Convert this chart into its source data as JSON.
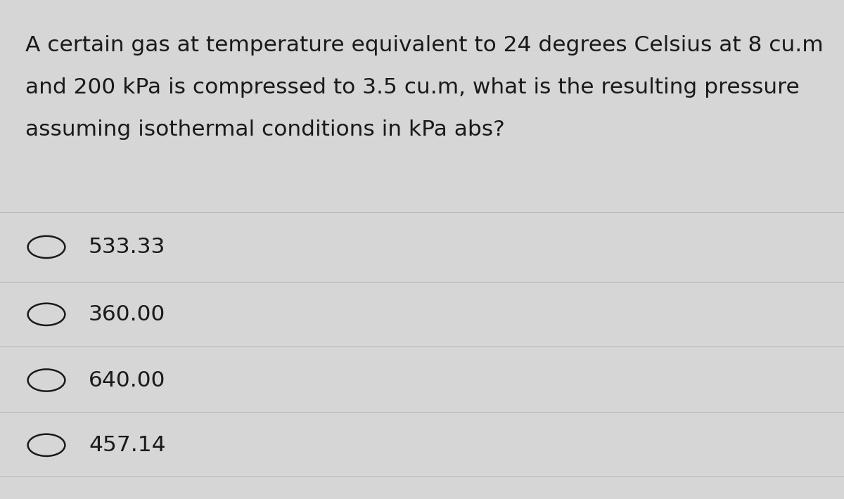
{
  "question_lines": [
    "A certain gas at temperature equivalent to 24 degrees Celsius at 8 cu.m",
    "and 200 kPa is compressed to 3.5 cu.m, what is the resulting pressure",
    "assuming isothermal conditions in kPa abs?"
  ],
  "options": [
    "533.33",
    "360.00",
    "640.00",
    "457.14"
  ],
  "background_color": "#d6d6d6",
  "text_color": "#1a1a1a",
  "line_color": "#b8b8b8",
  "question_fontsize": 22.5,
  "option_fontsize": 22.5,
  "figsize": [
    12.0,
    7.1
  ]
}
